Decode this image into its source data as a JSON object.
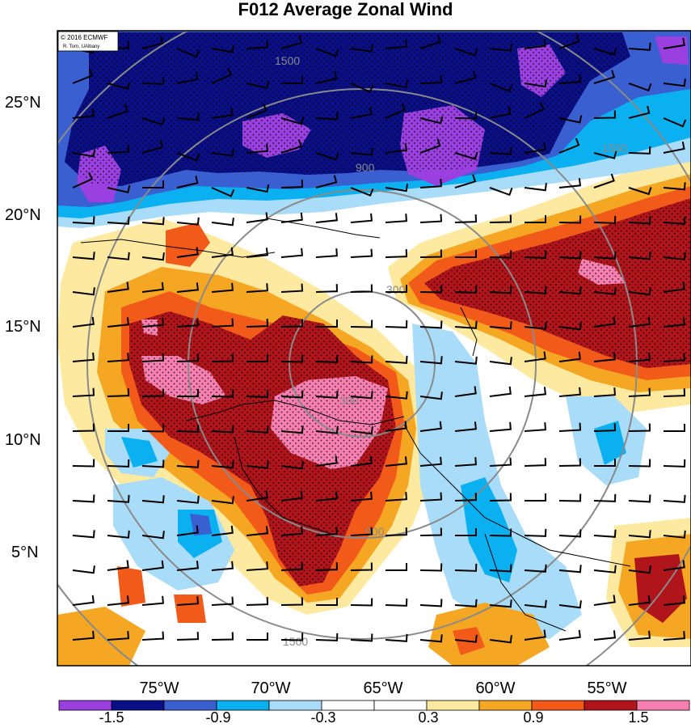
{
  "title": "F012 Average Zonal Wind",
  "credit": {
    "line1": "© 2016 ECMWF",
    "line2": "R. Torn, UAlbany"
  },
  "latitude_labels": [
    "25°N",
    "20°N",
    "15°N",
    "10°N",
    "5°N"
  ],
  "longitude_labels": [
    "75°W",
    "70°W",
    "65°W",
    "60°W",
    "55°W"
  ],
  "range_ring_labels": [
    "300",
    "900",
    "1500"
  ],
  "colorbar": {
    "tick_labels": [
      "-1.5",
      "-0.9",
      "-0.3",
      "0.3",
      "0.9",
      "1.5"
    ],
    "colors": [
      "#9a3fe0",
      "#0a0f86",
      "#3a5fd0",
      "#0ab0f0",
      "#a9dcf8",
      "#ffffff",
      "#ffffff",
      "#fde9a0",
      "#f5a623",
      "#f25a1a",
      "#b0151b",
      "#f77fb0"
    ]
  },
  "chart_data": {
    "type": "map",
    "field": "Average Zonal Wind (F012)",
    "lat_range": [
      0.5,
      27.5
    ],
    "lon_range": [
      -80,
      -52
    ],
    "contour_levels": [
      -1.5,
      -1.2,
      -0.9,
      -0.6,
      -0.3,
      0.3,
      0.6,
      0.9,
      1.2,
      1.5
    ]
  }
}
